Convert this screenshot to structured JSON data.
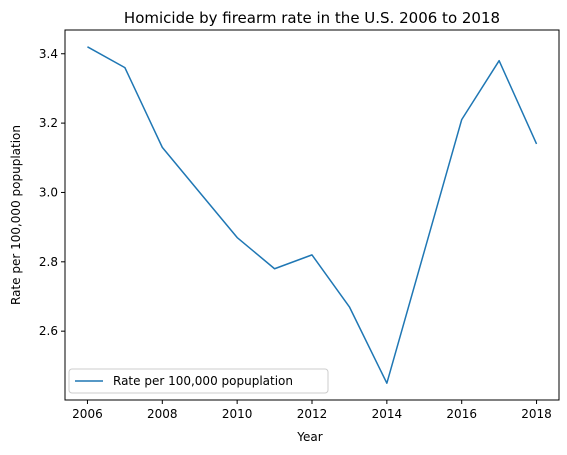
{
  "chart_data": {
    "type": "line",
    "title": "Homicide by firearm rate in the U.S. 2006 to 2018",
    "xlabel": "Year",
    "ylabel": "Rate per 100,000 popuplation",
    "x": [
      2006,
      2007,
      2008,
      2009,
      2010,
      2011,
      2012,
      2013,
      2014,
      2015,
      2016,
      2017,
      2018
    ],
    "series": [
      {
        "name": "Rate per 100,000 popuplation",
        "color": "#1f77b4",
        "values": [
          3.42,
          3.36,
          3.13,
          3.0,
          2.87,
          2.78,
          2.82,
          2.67,
          2.45,
          2.83,
          3.21,
          3.38,
          3.14
        ]
      }
    ],
    "xticks": [
      "2006",
      "2008",
      "2010",
      "2012",
      "2014",
      "2016",
      "2018"
    ],
    "yticks": [
      "2.6",
      "2.8",
      "3.0",
      "3.2",
      "3.4"
    ],
    "xlim": [
      2005.4,
      2018.6
    ],
    "ylim": [
      2.4015,
      3.4685
    ],
    "grid": false,
    "legend_position": "lower-left"
  }
}
